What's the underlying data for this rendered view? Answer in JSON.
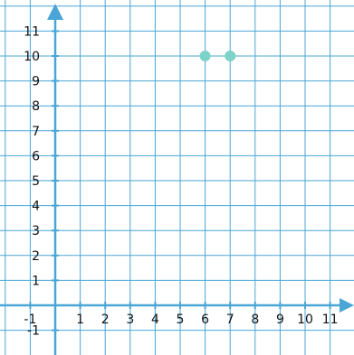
{
  "chart_data": {
    "type": "scatter",
    "title": "",
    "xlabel": "",
    "ylabel": "",
    "xlim": [
      -1,
      11
    ],
    "ylim": [
      -1,
      11
    ],
    "x_ticks": [
      -1,
      1,
      2,
      3,
      4,
      5,
      6,
      7,
      8,
      9,
      10,
      11
    ],
    "y_ticks": [
      -1,
      1,
      2,
      3,
      4,
      5,
      6,
      7,
      8,
      9,
      10,
      11
    ],
    "grid": true,
    "series": [
      {
        "points": [
          {
            "x": 6,
            "y": 10
          },
          {
            "x": 7,
            "y": 10
          }
        ]
      }
    ]
  },
  "colors": {
    "grid": "#4aa6d6",
    "axis": "#4aa6d6",
    "point": "#7dd3c8",
    "tick_text": "#111111"
  }
}
